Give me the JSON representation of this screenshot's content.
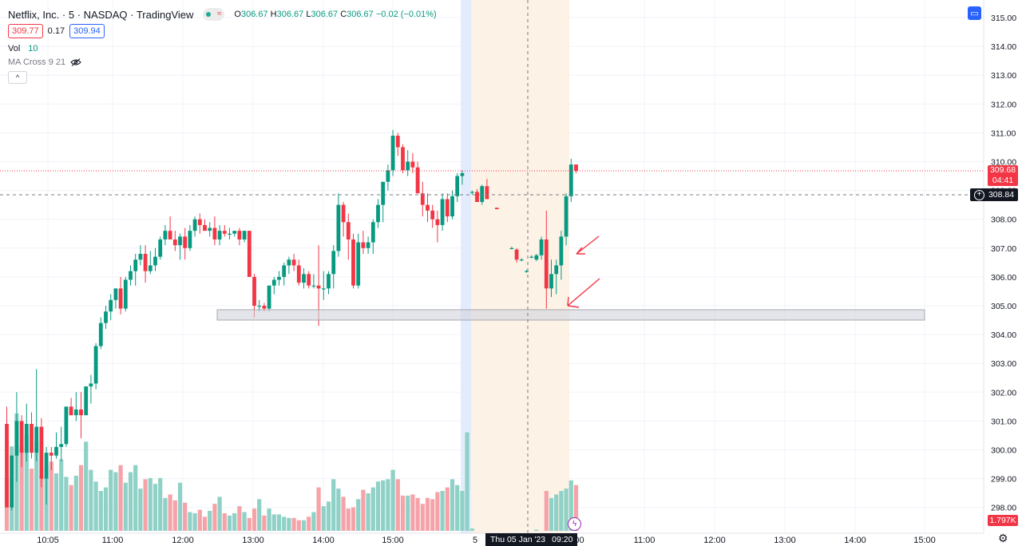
{
  "legend": {
    "symbol": "Netflix, Inc. · 5 · NASDAQ · TradingView",
    "status_icon": "waves-icon",
    "ohlc": {
      "o_label": "O",
      "o": "306.67",
      "h_label": "H",
      "h": "306.67",
      "l_label": "L",
      "l": "306.67",
      "c_label": "C",
      "c": "306.67",
      "change": "−0.02 (−0.01%)"
    },
    "sell_price": "309.77",
    "spread": "0.17",
    "buy_price": "309.94",
    "vol_label": "Vol",
    "vol_value": "10",
    "indicator": "MA Cross 9 21",
    "collapse_icon": "chevron-up-icon"
  },
  "y_axis": {
    "ticks": [
      "315.00",
      "314.00",
      "313.00",
      "312.00",
      "311.00",
      "310.00",
      "309.00",
      "308.00",
      "307.00",
      "306.00",
      "305.00",
      "304.00",
      "303.00",
      "302.00",
      "301.00",
      "300.00",
      "299.00",
      "298.00"
    ]
  },
  "price_tags": {
    "last_price": "309.68",
    "countdown": "04:41",
    "crosshair_price": "308.84",
    "volume": "1.797K"
  },
  "x_axis": {
    "labels": [
      "10:05",
      "11:00",
      "12:00",
      "13:00",
      "14:00",
      "15:00",
      "5",
      "11:00",
      "12:00",
      "13:00",
      "14:00",
      "15:00"
    ],
    "cursor_date": "Thu 05 Jan '23",
    "cursor_time": "09:20",
    "partial_label": ":00"
  },
  "colors": {
    "up": "#089981",
    "down": "#f23645",
    "vol_up": "#8fd1c6",
    "vol_down": "#f5a3a9",
    "premarket": "#fdf2e6",
    "session_line": "#e3ecfd",
    "annotation": "#f23645"
  },
  "chart_data": {
    "type": "candlestick",
    "title": "Netflix, Inc. · 5 · NASDAQ · TradingView",
    "y_range": [
      297.4,
      315.4
    ],
    "candles": [
      [
        300.9,
        301.5,
        298.7,
        298.0
      ],
      [
        298.0,
        299.8,
        297.9,
        299.8
      ],
      [
        299.8,
        302.0,
        298.9,
        301.0
      ],
      [
        301.0,
        301.2,
        299.4,
        299.9
      ],
      [
        299.9,
        301.6,
        299.6,
        300.9
      ],
      [
        300.9,
        301.3,
        299.7,
        299.9
      ],
      [
        299.9,
        302.8,
        299.6,
        300.8
      ],
      [
        300.8,
        301.1,
        298.7,
        299.0
      ],
      [
        299.0,
        300.1,
        298.1,
        299.9
      ],
      [
        299.9,
        300.1,
        299.3,
        299.8
      ],
      [
        299.8,
        300.6,
        299.7,
        300.1
      ],
      [
        300.1,
        300.8,
        299.6,
        300.2
      ],
      [
        300.2,
        301.5,
        300.1,
        301.5
      ],
      [
        301.5,
        301.8,
        301.2,
        301.2
      ],
      [
        301.2,
        302.0,
        301.0,
        301.4
      ],
      [
        301.4,
        302.0,
        300.4,
        301.2
      ],
      [
        301.2,
        302.2,
        301.2,
        302.2
      ],
      [
        302.2,
        302.6,
        301.6,
        302.3
      ],
      [
        302.3,
        303.7,
        302.1,
        303.6
      ],
      [
        303.6,
        304.6,
        303.5,
        304.4
      ],
      [
        304.4,
        305.0,
        304.2,
        304.8
      ],
      [
        304.8,
        305.4,
        304.5,
        305.2
      ],
      [
        305.2,
        305.6,
        304.9,
        305.6
      ],
      [
        305.6,
        306.0,
        304.7,
        304.9
      ],
      [
        304.9,
        306.0,
        304.8,
        305.9
      ],
      [
        305.9,
        306.4,
        305.7,
        306.2
      ],
      [
        306.2,
        306.8,
        305.7,
        306.6
      ],
      [
        306.6,
        307.1,
        306.4,
        306.8
      ],
      [
        306.8,
        307.1,
        305.8,
        306.2
      ],
      [
        306.2,
        306.9,
        306.1,
        306.4
      ],
      [
        306.4,
        307.0,
        306.2,
        306.7
      ],
      [
        306.7,
        307.4,
        306.6,
        307.3
      ],
      [
        307.3,
        307.8,
        307.1,
        307.6
      ],
      [
        307.6,
        308.1,
        307.3,
        307.3
      ],
      [
        307.3,
        307.6,
        306.9,
        307.1
      ],
      [
        307.1,
        307.5,
        306.6,
        307.4
      ],
      [
        307.4,
        307.7,
        306.6,
        307.0
      ],
      [
        307.0,
        307.8,
        306.9,
        307.6
      ],
      [
        307.6,
        308.1,
        307.4,
        308.0
      ],
      [
        308.0,
        308.2,
        307.5,
        307.8
      ],
      [
        307.8,
        308.0,
        307.6,
        307.6
      ],
      [
        307.6,
        307.9,
        307.4,
        307.7
      ],
      [
        307.7,
        308.1,
        307.1,
        307.3
      ],
      [
        307.3,
        307.8,
        307.1,
        307.6
      ],
      [
        307.6,
        307.8,
        307.4,
        307.5
      ],
      [
        307.5,
        307.7,
        307.3,
        307.5
      ],
      [
        307.5,
        307.6,
        307.4,
        307.6
      ],
      [
        307.6,
        307.7,
        307.1,
        307.3
      ],
      [
        307.3,
        307.6,
        307.2,
        307.6
      ],
      [
        307.6,
        307.6,
        306.0,
        306.0
      ],
      [
        306.0,
        306.1,
        304.6,
        305.0
      ],
      [
        305.0,
        305.2,
        304.8,
        305.0
      ],
      [
        305.0,
        305.1,
        304.8,
        304.9
      ],
      [
        304.9,
        305.7,
        304.8,
        305.7
      ],
      [
        305.7,
        306.0,
        305.4,
        305.9
      ],
      [
        305.9,
        306.2,
        305.7,
        306.0
      ],
      [
        306.0,
        306.5,
        305.7,
        306.4
      ],
      [
        306.4,
        306.7,
        306.1,
        306.6
      ],
      [
        306.6,
        306.8,
        306.2,
        306.4
      ],
      [
        306.4,
        306.6,
        305.7,
        305.8
      ],
      [
        305.8,
        306.3,
        305.6,
        306.1
      ],
      [
        306.1,
        306.2,
        305.6,
        305.7
      ],
      [
        305.7,
        306.1,
        305.6,
        305.7
      ],
      [
        305.7,
        307.1,
        304.3,
        305.6
      ],
      [
        305.6,
        306.2,
        305.2,
        305.6
      ],
      [
        305.6,
        306.2,
        305.4,
        306.1
      ],
      [
        306.1,
        307.1,
        305.6,
        306.9
      ],
      [
        306.9,
        308.9,
        306.7,
        308.5
      ],
      [
        308.5,
        308.6,
        307.4,
        307.9
      ],
      [
        307.9,
        308.2,
        306.6,
        307.3
      ],
      [
        307.3,
        307.5,
        305.6,
        305.7
      ],
      [
        305.7,
        307.5,
        305.6,
        307.2
      ],
      [
        307.2,
        307.6,
        306.8,
        307.0
      ],
      [
        307.0,
        307.4,
        306.8,
        307.2
      ],
      [
        307.2,
        308.0,
        306.8,
        307.9
      ],
      [
        307.9,
        308.7,
        307.7,
        308.5
      ],
      [
        308.5,
        309.3,
        307.9,
        309.3
      ],
      [
        309.3,
        309.9,
        309.0,
        309.7
      ],
      [
        309.7,
        311.1,
        309.5,
        310.9
      ],
      [
        310.9,
        311.0,
        310.2,
        310.5
      ],
      [
        310.5,
        310.6,
        309.6,
        309.7
      ],
      [
        309.7,
        310.4,
        309.5,
        310.0
      ],
      [
        310.0,
        310.3,
        309.6,
        309.8
      ],
      [
        309.8,
        310.0,
        308.9,
        308.9
      ],
      [
        308.9,
        309.3,
        308.1,
        308.5
      ],
      [
        308.5,
        308.9,
        307.9,
        308.3
      ],
      [
        308.3,
        308.5,
        307.7,
        308.0
      ],
      [
        308.0,
        308.3,
        307.2,
        307.8
      ],
      [
        307.8,
        308.9,
        307.6,
        308.7
      ],
      [
        308.7,
        308.9,
        307.9,
        308.1
      ],
      [
        308.1,
        309.0,
        308.0,
        308.8
      ],
      [
        308.8,
        309.6,
        308.6,
        309.5
      ],
      [
        309.5,
        309.7,
        309.2,
        309.6
      ],
      null,
      [
        308.95,
        309.0,
        308.85,
        308.95
      ],
      [
        308.95,
        309.05,
        308.6,
        308.6
      ],
      [
        308.6,
        309.2,
        308.5,
        309.15
      ],
      [
        309.15,
        309.4,
        308.8,
        308.7
      ],
      null,
      [
        308.4,
        308.4,
        308.35,
        308.35
      ],
      null,
      null,
      [
        307.0,
        307.05,
        306.95,
        307.0
      ],
      [
        306.95,
        307.0,
        306.5,
        306.6
      ],
      [
        306.6,
        306.65,
        306.55,
        306.6
      ],
      [
        306.2,
        306.25,
        306.15,
        306.2
      ],
      [
        306.7,
        306.75,
        306.65,
        306.7
      ],
      [
        306.6,
        306.8,
        306.55,
        306.75
      ],
      [
        306.75,
        307.4,
        306.6,
        307.3
      ],
      [
        307.3,
        308.3,
        304.9,
        305.6
      ],
      [
        305.6,
        306.6,
        305.3,
        306.1
      ],
      [
        306.1,
        306.6,
        305.4,
        306.4
      ],
      [
        306.4,
        307.6,
        305.9,
        307.4
      ],
      [
        307.4,
        308.9,
        307.1,
        308.8
      ],
      [
        308.8,
        310.1,
        308.6,
        309.9
      ],
      [
        309.9,
        309.9,
        309.6,
        309.68
      ]
    ],
    "volumes": [
      0.45,
      0.72,
      1.0,
      0.72,
      0.82,
      0.53,
      0.76,
      0.47,
      0.55,
      0.59,
      0.49,
      0.61,
      0.46,
      0.39,
      0.47,
      0.56,
      0.76,
      0.52,
      0.42,
      0.34,
      0.37,
      0.52,
      0.5,
      0.56,
      0.41,
      0.5,
      0.56,
      0.36,
      0.44,
      0.45,
      0.4,
      0.45,
      0.28,
      0.31,
      0.26,
      0.41,
      0.24,
      0.16,
      0.15,
      0.18,
      0.12,
      0.17,
      0.23,
      0.29,
      0.15,
      0.13,
      0.15,
      0.21,
      0.16,
      0.11,
      0.19,
      0.27,
      0.13,
      0.19,
      0.14,
      0.14,
      0.12,
      0.11,
      0.11,
      0.09,
      0.09,
      0.12,
      0.16,
      0.37,
      0.21,
      0.25,
      0.44,
      0.36,
      0.29,
      0.19,
      0.2,
      0.27,
      0.35,
      0.32,
      0.37,
      0.42,
      0.43,
      0.44,
      0.52,
      0.44,
      0.3,
      0.3,
      0.31,
      0.28,
      0.23,
      0.28,
      0.27,
      0.33,
      0.34,
      0.37,
      0.44,
      0.39,
      0.34,
      0.84,
      0.02,
      0,
      0,
      0,
      0,
      0,
      0,
      0,
      0,
      0,
      0,
      0,
      0,
      0.01,
      0,
      0.34,
      0.28,
      0.31,
      0.34,
      0.36,
      0.43,
      0.39
    ],
    "support_zone": [
      304.65,
      305.0
    ],
    "last_price": 309.68,
    "crosshair_price": 308.84
  }
}
